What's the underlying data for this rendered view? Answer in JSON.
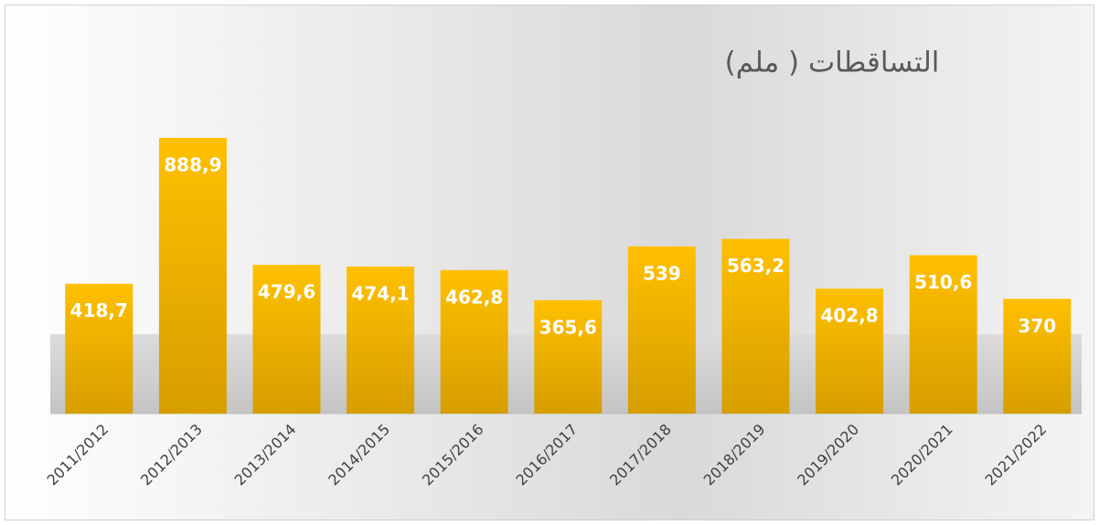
{
  "chart_data": {
    "type": "bar",
    "title": "التساقطات ( ملم)",
    "categories": [
      "2011/2012",
      "2012/2013",
      "2013/2014",
      "2014/2015",
      "2015/2016",
      "2016/2017",
      "2017/2018",
      "2018/2019",
      "2019/2020",
      "2020/2021",
      "2021/2022"
    ],
    "values": [
      418.7,
      888.9,
      479.6,
      474.1,
      462.8,
      365.6,
      539,
      563.2,
      402.8,
      510.6,
      370
    ],
    "value_labels": [
      "418,7",
      "888,9",
      "479,6",
      "474,1",
      "462,8",
      "365,6",
      "539",
      "563,2",
      "402,8",
      "510,6",
      "370"
    ],
    "color": "#ffc000"
  }
}
